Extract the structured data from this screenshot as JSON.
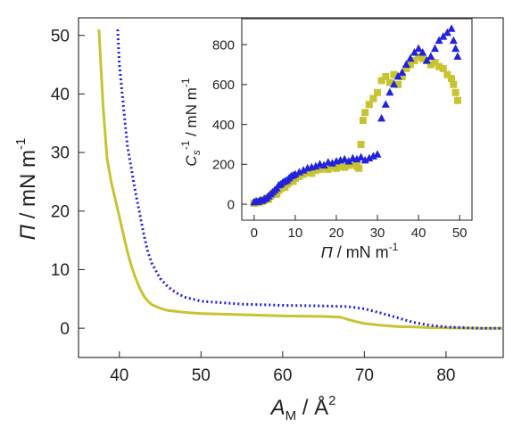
{
  "chart_data": [
    {
      "type": "line",
      "xlabel": {
        "sym": "A",
        "sub": "M",
        "unit": " / Å",
        "sup": "2"
      },
      "ylabel": {
        "sym": "Π",
        "unit": " / mN m",
        "sup": "-1"
      },
      "xlim": [
        35,
        87
      ],
      "ylim": [
        -5,
        53
      ],
      "xticks": [
        40,
        50,
        60,
        70,
        80
      ],
      "yticks": [
        0,
        10,
        20,
        30,
        40,
        50
      ],
      "grid": false,
      "series": [
        {
          "style": "solid",
          "color": "#c8c431",
          "x": [
            37.5,
            38.0,
            38.5,
            39.0,
            39.5,
            40.0,
            40.5,
            41.0,
            41.5,
            42.0,
            42.5,
            43.0,
            43.5,
            44.0,
            45.0,
            46.0,
            48.0,
            50.0,
            55.0,
            60.0,
            65.0,
            67.0,
            68.0,
            69.0,
            70.0,
            72.0,
            74.0,
            76.0,
            78.0,
            80.0,
            82.0,
            84.0,
            87.0
          ],
          "y": [
            51.0,
            38.0,
            29.0,
            25.0,
            22.0,
            19.0,
            16.0,
            13.0,
            10.5,
            8.5,
            6.8,
            5.5,
            4.6,
            4.0,
            3.4,
            3.0,
            2.7,
            2.5,
            2.3,
            2.1,
            2.0,
            1.9,
            1.5,
            1.1,
            0.8,
            0.5,
            0.3,
            0.2,
            0.1,
            0.05,
            0.02,
            0.0,
            0.0
          ]
        },
        {
          "style": "dotted",
          "color": "#2222dd",
          "x": [
            39.8,
            40.0,
            40.5,
            41.0,
            41.5,
            42.0,
            42.5,
            43.0,
            43.5,
            44.0,
            45.0,
            46.0,
            47.0,
            48.0,
            50.0,
            55.0,
            60.0,
            65.0,
            68.0,
            70.0,
            72.0,
            74.0,
            76.0,
            78.0,
            80.0,
            82.0,
            84.0,
            87.0
          ],
          "y": [
            51.0,
            45.0,
            38.0,
            31.0,
            27.0,
            23.0,
            19.5,
            16.0,
            13.0,
            11.0,
            8.5,
            7.0,
            6.0,
            5.3,
            4.6,
            4.1,
            3.9,
            3.8,
            3.7,
            3.3,
            2.6,
            1.8,
            1.0,
            0.5,
            0.2,
            0.1,
            0.0,
            0.0
          ]
        }
      ]
    },
    {
      "type": "scatter",
      "xlabel": {
        "sym": "Π",
        "unit": " / mN m",
        "sup": "-1"
      },
      "ylabel": {
        "sym": "C",
        "sub": "s",
        "sup": "-1",
        "unit": " / mN m",
        "sup2": "-1"
      },
      "xlim": [
        -3,
        53
      ],
      "ylim": [
        -80,
        930
      ],
      "xticks": [
        0,
        10,
        20,
        30,
        40,
        50
      ],
      "yticks": [
        0,
        200,
        400,
        600,
        800
      ],
      "grid": false,
      "series": [
        {
          "marker": "square",
          "color": "#c8c431",
          "x": [
            0.0,
            0.5,
            1.0,
            1.5,
            2.0,
            2.5,
            3.0,
            3.5,
            4.0,
            4.5,
            5.0,
            5.5,
            6.0,
            6.5,
            7.0,
            7.5,
            8.0,
            8.5,
            9.0,
            9.5,
            10.0,
            11.0,
            12.0,
            13.0,
            14.0,
            15.0,
            16.0,
            17.0,
            18.0,
            19.0,
            20.0,
            21.0,
            22.0,
            23.0,
            24.0,
            25.0,
            25.5,
            26.0,
            26.5,
            27.0,
            28.0,
            29.0,
            30.0,
            31.0,
            32.0,
            33.0,
            34.0,
            35.0,
            36.0,
            37.0,
            38.0,
            39.0,
            40.0,
            41.0,
            42.0,
            43.0,
            44.0,
            45.0,
            46.0,
            47.0,
            48.0,
            48.5,
            49.0,
            49.5
          ],
          "y": [
            5,
            10,
            8,
            12,
            15,
            20,
            30,
            25,
            40,
            50,
            60,
            50,
            70,
            80,
            90,
            85,
            100,
            110,
            120,
            115,
            130,
            140,
            150,
            160,
            155,
            170,
            175,
            180,
            175,
            185,
            180,
            190,
            185,
            195,
            200,
            190,
            180,
            300,
            420,
            460,
            500,
            530,
            560,
            620,
            640,
            610,
            650,
            600,
            640,
            680,
            700,
            720,
            740,
            730,
            720,
            700,
            710,
            690,
            680,
            650,
            630,
            600,
            560,
            520
          ]
        },
        {
          "marker": "triangle",
          "color": "#2222dd",
          "x": [
            0.0,
            0.5,
            1.0,
            1.5,
            2.0,
            2.5,
            3.0,
            3.5,
            4.0,
            4.5,
            5.0,
            5.5,
            6.0,
            6.5,
            7.0,
            7.5,
            8.0,
            8.5,
            9.0,
            9.5,
            10.0,
            11.0,
            12.0,
            13.0,
            14.0,
            15.0,
            16.0,
            17.0,
            18.0,
            19.0,
            20.0,
            21.0,
            22.0,
            23.0,
            24.0,
            25.0,
            26.0,
            27.0,
            28.0,
            29.0,
            30.0,
            31.0,
            32.0,
            33.0,
            34.0,
            35.0,
            36.0,
            37.0,
            38.0,
            39.0,
            40.0,
            41.0,
            42.0,
            43.0,
            44.0,
            45.0,
            46.0,
            47.0,
            48.0,
            48.5,
            49.0,
            49.5
          ],
          "y": [
            10,
            15,
            12,
            20,
            18,
            25,
            30,
            40,
            50,
            60,
            70,
            80,
            95,
            100,
            110,
            115,
            120,
            130,
            140,
            145,
            150,
            160,
            170,
            180,
            185,
            190,
            200,
            195,
            210,
            205,
            215,
            220,
            225,
            215,
            230,
            225,
            235,
            220,
            230,
            240,
            250,
            430,
            500,
            560,
            600,
            640,
            660,
            700,
            730,
            760,
            780,
            760,
            720,
            740,
            780,
            820,
            840,
            860,
            880,
            820,
            780,
            740
          ]
        }
      ]
    }
  ]
}
